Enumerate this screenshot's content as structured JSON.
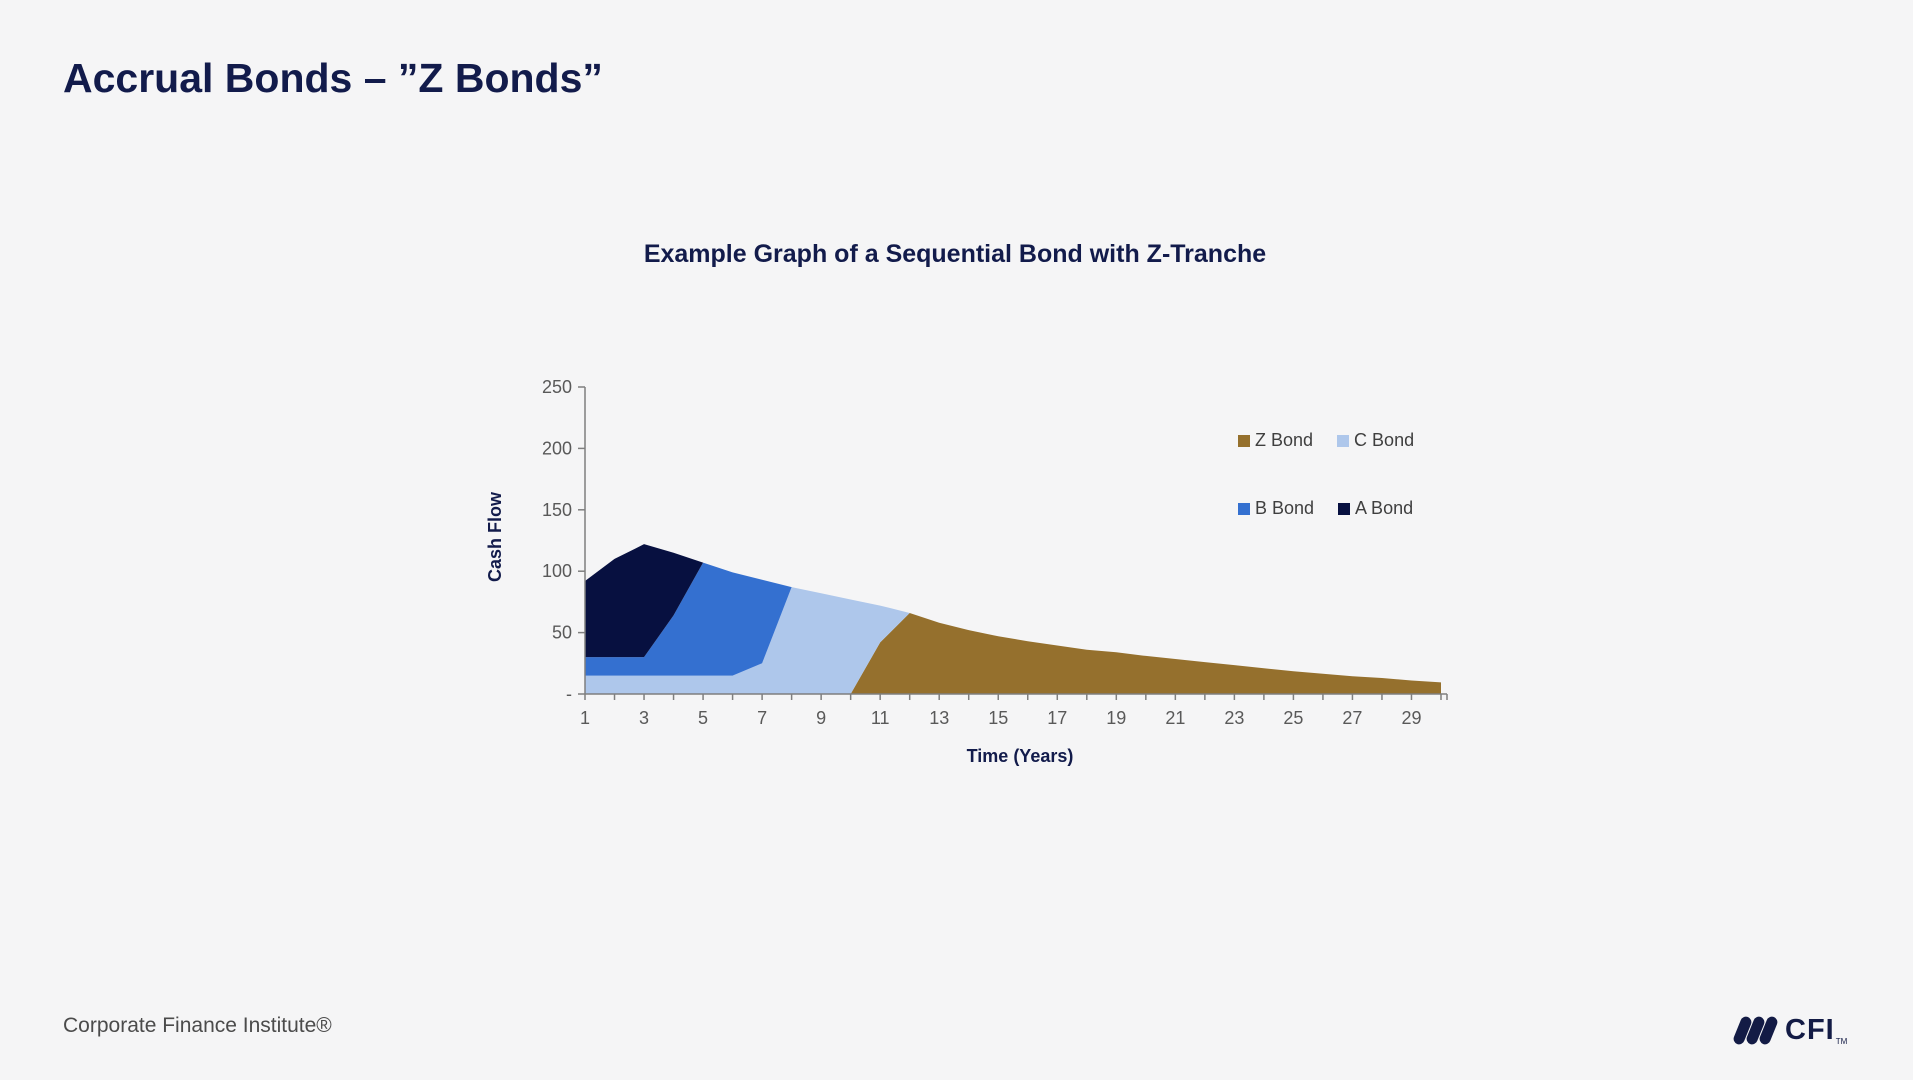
{
  "slide": {
    "title": "Accrual Bonds – ”Z Bonds”",
    "footer": "Corporate Finance Institute®",
    "logo_text": "CFI",
    "logo_tm": "TM"
  },
  "colors": {
    "background": "#F5F5F6",
    "heading_navy": "#121B4B",
    "axis_line": "#7F7F7F",
    "tick_text": "#595959",
    "legend_text": "#3F3F3F",
    "z_bond": "#95702D",
    "c_bond": "#AEC7EB",
    "b_bond": "#3470D0",
    "a_bond": "#071040"
  },
  "chart_data": {
    "type": "area",
    "stacked": true,
    "title": "Example Graph of a Sequential Bond with Z-Tranche",
    "xlabel": "Time (Years)",
    "ylabel": "Cash Flow",
    "grid": false,
    "legend_position": "upper-right",
    "x": [
      1,
      2,
      3,
      4,
      5,
      6,
      7,
      8,
      9,
      10,
      11,
      12,
      13,
      14,
      15,
      16,
      17,
      18,
      19,
      20,
      21,
      22,
      23,
      24,
      25,
      26,
      27,
      28,
      29,
      30
    ],
    "xlim": [
      1,
      30
    ],
    "ylim": [
      0,
      250
    ],
    "x_tick_labels": [
      1,
      3,
      5,
      7,
      9,
      11,
      13,
      15,
      17,
      19,
      21,
      23,
      25,
      27,
      29
    ],
    "y_ticks": [
      {
        "value": 0,
        "label": "-"
      },
      {
        "value": 50,
        "label": "50"
      },
      {
        "value": 100,
        "label": "100"
      },
      {
        "value": 150,
        "label": "150"
      },
      {
        "value": 200,
        "label": "200"
      },
      {
        "value": 250,
        "label": "250"
      }
    ],
    "series": [
      {
        "name": "Z Bond",
        "color_key": "z_bond",
        "values": [
          0,
          0,
          0,
          0,
          0,
          0,
          0,
          0,
          0,
          0,
          42,
          66,
          58,
          52,
          47,
          43,
          39.5,
          36,
          34,
          31,
          28.5,
          26,
          23.5,
          21,
          18.5,
          16.5,
          14.5,
          13,
          11,
          9.5
        ]
      },
      {
        "name": "C Bond",
        "color_key": "c_bond",
        "values": [
          15,
          15,
          15,
          15,
          15,
          15,
          25,
          87,
          82,
          77,
          30,
          0,
          0,
          0,
          0,
          0,
          0,
          0,
          0,
          0,
          0,
          0,
          0,
          0,
          0,
          0,
          0,
          0,
          0,
          0
        ]
      },
      {
        "name": "B Bond",
        "color_key": "b_bond",
        "values": [
          15,
          15,
          15,
          49,
          92,
          84,
          68,
          0,
          0,
          0,
          0,
          0,
          0,
          0,
          0,
          0,
          0,
          0,
          0,
          0,
          0,
          0,
          0,
          0,
          0,
          0,
          0,
          0,
          0,
          0
        ]
      },
      {
        "name": "A Bond",
        "color_key": "a_bond",
        "values": [
          62,
          80,
          92,
          51,
          0,
          0,
          0,
          0,
          0,
          0,
          0,
          0,
          0,
          0,
          0,
          0,
          0,
          0,
          0,
          0,
          0,
          0,
          0,
          0,
          0,
          0,
          0,
          0,
          0,
          0
        ]
      }
    ],
    "legend": [
      {
        "label": "Z Bond",
        "color_key": "z_bond"
      },
      {
        "label": "C Bond",
        "color_key": "c_bond"
      },
      {
        "label": "B Bond",
        "color_key": "b_bond"
      },
      {
        "label": "A Bond",
        "color_key": "a_bond"
      }
    ]
  }
}
